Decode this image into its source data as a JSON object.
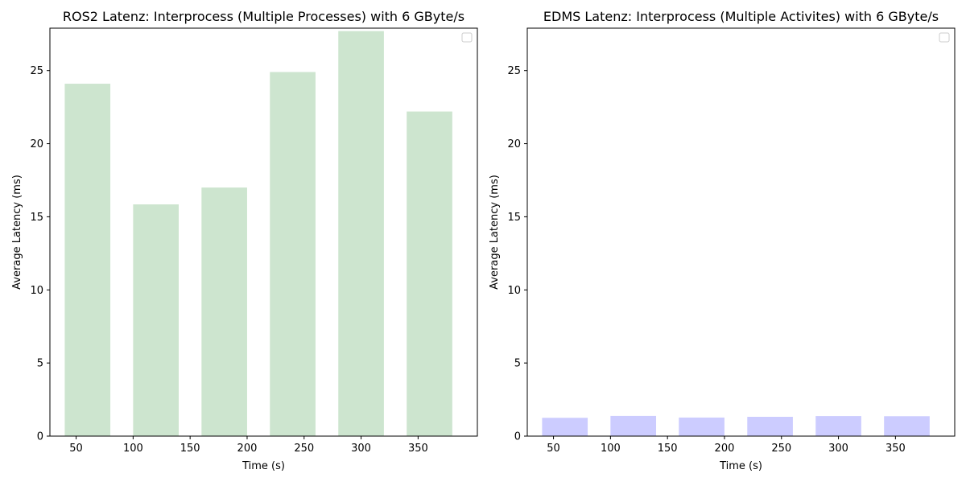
{
  "chart_data": [
    {
      "type": "bar",
      "title": "ROS2 Latenz: Interprocess (Multiple Processes) with 6 GByte/s",
      "xlabel": "Time (s)",
      "ylabel": "Average Latency (ms)",
      "x": [
        60,
        120,
        180,
        240,
        300,
        360
      ],
      "values": [
        24.1,
        15.85,
        17.0,
        24.9,
        27.7,
        22.2
      ],
      "bar_width": 40,
      "xlim": [
        27,
        402
      ],
      "ylim": [
        0,
        27.9
      ],
      "xticks": [
        50,
        100,
        150,
        200,
        250,
        300,
        350
      ],
      "yticks": [
        0,
        5,
        10,
        15,
        20,
        25
      ],
      "color": "#cde5cf",
      "legend": "top-right (empty)",
      "grid": false
    },
    {
      "type": "bar",
      "title": "EDMS Latenz: Interprocess (Multiple Activites) with 6 GByte/s",
      "xlabel": "Time (s)",
      "ylabel": "Average Latency (ms)",
      "x": [
        60,
        120,
        180,
        240,
        300,
        360
      ],
      "values": [
        1.25,
        1.38,
        1.27,
        1.32,
        1.37,
        1.36
      ],
      "bar_width": 40,
      "xlim": [
        27,
        402
      ],
      "ylim": [
        0,
        27.9
      ],
      "xticks": [
        50,
        100,
        150,
        200,
        250,
        300,
        350
      ],
      "yticks": [
        0,
        5,
        10,
        15,
        20,
        25
      ],
      "color": "#ccccff",
      "legend": "top-right (empty)",
      "grid": false
    }
  ]
}
